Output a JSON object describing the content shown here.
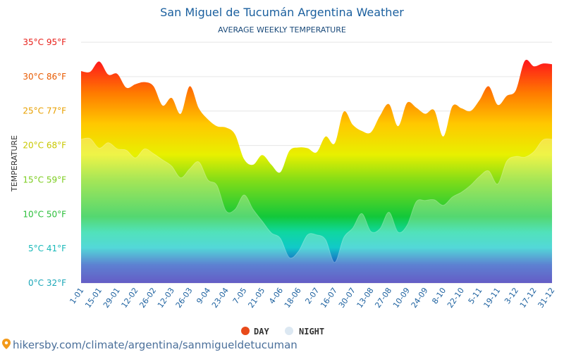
{
  "chart_data": {
    "type": "area",
    "title": "San Miguel de Tucumán Argentina Weather",
    "subtitle": "AVERAGE WEEKLY TEMPERATURE",
    "ylabel": "TEMPERATURE",
    "ylim": [
      0,
      35
    ],
    "y_ticks": [
      {
        "value": 0,
        "label": "0°C 32°F",
        "color": "#1aa6b7"
      },
      {
        "value": 5,
        "label": "5°C 41°F",
        "color": "#19b9b9"
      },
      {
        "value": 10,
        "label": "10°C 50°F",
        "color": "#2bbf3a"
      },
      {
        "value": 15,
        "label": "15°C 59°F",
        "color": "#7ccd1f"
      },
      {
        "value": 20,
        "label": "20°C 68°F",
        "color": "#c8c800"
      },
      {
        "value": 25,
        "label": "25°C 77°F",
        "color": "#e8a000"
      },
      {
        "value": 30,
        "label": "30°C 86°F",
        "color": "#e85a00"
      },
      {
        "value": 35,
        "label": "35°C 95°F",
        "color": "#e8201a"
      }
    ],
    "x_tick_labels": [
      "1-01",
      "15-01",
      "29-01",
      "12-02",
      "26-02",
      "12-03",
      "26-03",
      "9-04",
      "23-04",
      "7-05",
      "21-05",
      "4-06",
      "18-06",
      "2-07",
      "16-07",
      "30-07",
      "13-08",
      "27-08",
      "10-09",
      "24-09",
      "8-10",
      "22-10",
      "5-11",
      "19-11",
      "3-12",
      "17-12",
      "31-12"
    ],
    "series": [
      {
        "name": "DAY",
        "values": [
          30.8,
          30.7,
          32.2,
          30.3,
          30.4,
          28.4,
          28.9,
          29.2,
          28.6,
          25.8,
          26.9,
          24.6,
          28.6,
          25.4,
          23.8,
          22.8,
          22.6,
          21.6,
          18.0,
          17.2,
          18.6,
          17.2,
          16.1,
          19.2,
          19.7,
          19.6,
          19.0,
          21.3,
          20.3,
          24.9,
          23.0,
          22.1,
          21.9,
          24.3,
          26.0,
          22.8,
          26.2,
          25.5,
          24.6,
          25.1,
          21.3,
          25.7,
          25.4,
          25.0,
          26.6,
          28.6,
          25.9,
          27.2,
          28.0,
          32.3,
          31.5,
          31.9,
          31.8
        ]
      },
      {
        "name": "NIGHT",
        "values": [
          20.9,
          21.0,
          19.6,
          20.4,
          19.5,
          19.3,
          18.2,
          19.5,
          18.8,
          17.9,
          17.0,
          15.3,
          16.6,
          17.6,
          15.0,
          14.2,
          10.5,
          10.7,
          12.8,
          10.7,
          9.0,
          7.3,
          6.5,
          3.7,
          4.6,
          7.0,
          7.0,
          6.3,
          3.0,
          6.6,
          8.0,
          10.1,
          7.5,
          7.9,
          10.3,
          7.4,
          8.4,
          11.8,
          12.0,
          12.1,
          11.3,
          12.5,
          13.2,
          14.2,
          15.5,
          16.3,
          14.4,
          17.7,
          18.4,
          18.3,
          19.1,
          20.8,
          20.9
        ]
      }
    ],
    "colors": {
      "day": "#e84a1a",
      "night": "#dce8f2"
    },
    "legend_position": "bottom-center",
    "grid": true
  },
  "footer": {
    "source": "hikersby.com/climate/argentina/sanmigueldetucuman"
  }
}
